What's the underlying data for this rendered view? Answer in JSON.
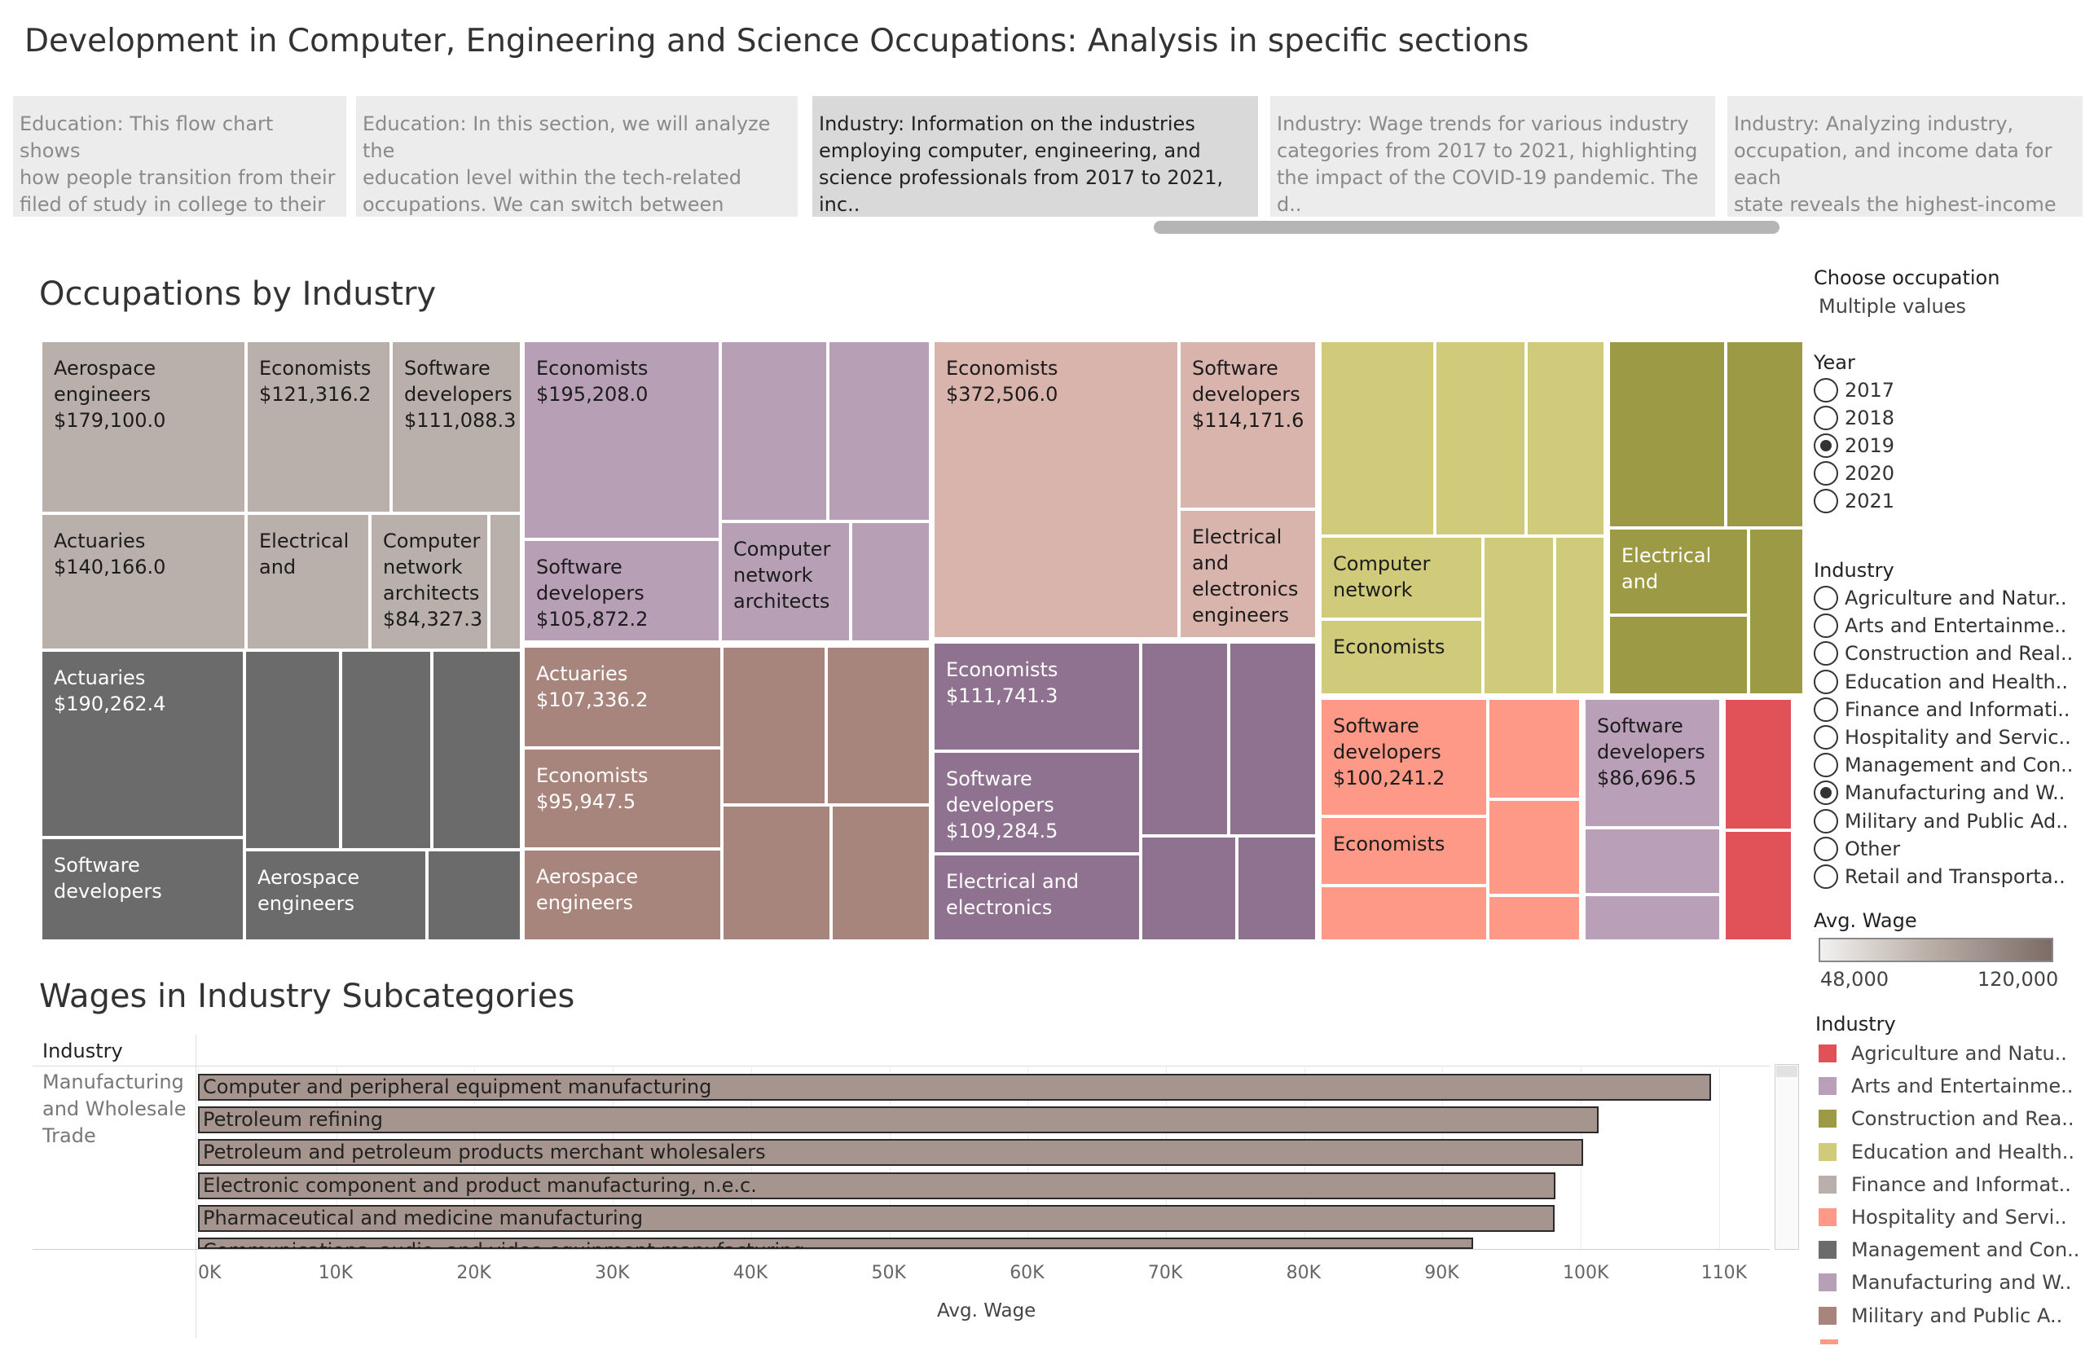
{
  "title": "Development in Computer, Engineering and Science Occupations: Analysis in specific sections",
  "story_points": [
    {
      "text": "Education: This flow chart shows\nhow people transition from their\nfiled of study in college to their e..",
      "active": false
    },
    {
      "text": "Education: In this section, we will analyze the\neducation level within the tech-related\noccupations. We can switch between differe..",
      "active": false
    },
    {
      "text": "Industry: Information on the industries\nemploying computer, engineering, and\nscience professionals from 2017 to 2021, inc..",
      "active": true
    },
    {
      "text": "Industry: Wage trends for various industry\ncategories from 2017 to 2021, highlighting\nthe impact of the COVID-19 pandemic. The d..",
      "active": false
    },
    {
      "text": "Industry: Analyzing industry,\noccupation, and income data for each\nstate reveals the highest-income oc..",
      "active": false
    }
  ],
  "treemap": {
    "title": "Occupations by Industry",
    "cells": [
      {
        "text": "Aerospace\nengineers\n$179,100.0",
        "color": "#bab0ab"
      },
      {
        "text": "Economists\n$121,316.2",
        "color": "#bab0ab"
      },
      {
        "text": "Software\ndevelopers\n$111,088.3",
        "color": "#bab0ab"
      },
      {
        "text": "Actuaries\n$140,166.0",
        "color": "#bab0ab"
      },
      {
        "text": "Electrical\nand",
        "color": "#bab0ab"
      },
      {
        "text": "Computer\nnetwork\narchitects\n$84,327.3",
        "color": "#bab0ab"
      },
      {
        "text": "",
        "color": "#bab0ab"
      },
      {
        "text": "Actuaries\n$190,262.4",
        "color": "#6b6b6b"
      },
      {
        "text": "",
        "color": "#6b6b6b"
      },
      {
        "text": "",
        "color": "#6b6b6b"
      },
      {
        "text": "",
        "color": "#6b6b6b"
      },
      {
        "text": "Software\ndevelopers",
        "color": "#6b6b6b"
      },
      {
        "text": "Aerospace\nengineers",
        "color": "#6b6b6b"
      },
      {
        "text": "",
        "color": "#6b6b6b"
      },
      {
        "text": "Economists\n$195,208.0",
        "color": "#b79fb6"
      },
      {
        "text": "",
        "color": "#b79fb6"
      },
      {
        "text": "",
        "color": "#b79fb6"
      },
      {
        "text": "Software\ndevelopers\n$105,872.2",
        "color": "#b79fb6"
      },
      {
        "text": "Computer\nnetwork\narchitects",
        "color": "#b79fb6"
      },
      {
        "text": "",
        "color": "#b79fb6"
      },
      {
        "text": "Actuaries\n$107,336.2",
        "color": "#a8857c"
      },
      {
        "text": "",
        "color": "#a8857c"
      },
      {
        "text": "",
        "color": "#a8857c"
      },
      {
        "text": "Economists\n$95,947.5",
        "color": "#a8857c"
      },
      {
        "text": "",
        "color": "#a8857c"
      },
      {
        "text": "",
        "color": "#a8857c"
      },
      {
        "text": "Aerospace\nengineers",
        "color": "#a8857c"
      },
      {
        "text": "Economists\n$372,506.0",
        "color": "#d9b4ad"
      },
      {
        "text": "Software\ndevelopers\n$114,171.6",
        "color": "#d9b4ad"
      },
      {
        "text": "Electrical\nand\nelectronics\nengineers",
        "color": "#d9b4ad"
      },
      {
        "text": "Economists\n$111,741.3",
        "color": "#8f7290"
      },
      {
        "text": "",
        "color": "#8f7290"
      },
      {
        "text": "",
        "color": "#8f7290"
      },
      {
        "text": "Software\ndevelopers\n$109,284.5",
        "color": "#8f7290"
      },
      {
        "text": "",
        "color": "#8f7290"
      },
      {
        "text": "",
        "color": "#8f7290"
      },
      {
        "text": "Electrical and\nelectronics",
        "color": "#8f7290"
      },
      {
        "text": "",
        "color": "#cfcb7a"
      },
      {
        "text": "",
        "color": "#cfcb7a"
      },
      {
        "text": "",
        "color": "#cfcb7a"
      },
      {
        "text": "Computer\nnetwork",
        "color": "#cfcb7a"
      },
      {
        "text": "",
        "color": "#cfcb7a"
      },
      {
        "text": "",
        "color": "#cfcb7a"
      },
      {
        "text": "Economists",
        "color": "#cfcb7a"
      },
      {
        "text": "",
        "color": "#9c9a44"
      },
      {
        "text": "",
        "color": "#9c9a44"
      },
      {
        "text": "Electrical\nand",
        "color": "#9c9a44"
      },
      {
        "text": "",
        "color": "#9c9a44"
      },
      {
        "text": "",
        "color": "#9c9a44"
      },
      {
        "text": "",
        "color": "#9c9a44"
      },
      {
        "text": "Software\ndevelopers\n$100,241.2",
        "color": "#fe9988"
      },
      {
        "text": "",
        "color": "#fe9988"
      },
      {
        "text": "Economists",
        "color": "#fe9988"
      },
      {
        "text": "",
        "color": "#fe9988"
      },
      {
        "text": "",
        "color": "#fe9988"
      },
      {
        "text": "",
        "color": "#fe9988"
      },
      {
        "text": "Software\ndevelopers\n$86,696.5",
        "color": "#b99fb8"
      },
      {
        "text": "",
        "color": "#b99fb8"
      },
      {
        "text": "",
        "color": "#b99fb8"
      },
      {
        "text": "",
        "color": "#e15258"
      },
      {
        "text": "",
        "color": "#e15258"
      }
    ]
  },
  "filters": {
    "occupation_label": "Choose occupation",
    "occupation_value": "Multiple values",
    "year_label": "Year",
    "years": [
      {
        "label": "2017",
        "selected": false
      },
      {
        "label": "2018",
        "selected": false
      },
      {
        "label": "2019",
        "selected": true
      },
      {
        "label": "2020",
        "selected": false
      },
      {
        "label": "2021",
        "selected": false
      }
    ],
    "industry_label": "Industry",
    "industries": [
      {
        "label": "Agriculture and Natur..",
        "selected": false
      },
      {
        "label": "Arts and Entertainme..",
        "selected": false
      },
      {
        "label": "Construction and Real..",
        "selected": false
      },
      {
        "label": "Education and Health..",
        "selected": false
      },
      {
        "label": "Finance and Informati..",
        "selected": false
      },
      {
        "label": "Hospitality and Servic..",
        "selected": false
      },
      {
        "label": "Management and Con..",
        "selected": false
      },
      {
        "label": "Manufacturing and W..",
        "selected": true
      },
      {
        "label": "Military and Public Ad..",
        "selected": false
      },
      {
        "label": "Other",
        "selected": false
      },
      {
        "label": "Retail and Transporta..",
        "selected": false
      }
    ]
  },
  "avg_wage_legend": {
    "title": "Avg. Wage",
    "min_label": "48,000",
    "max_label": "120,000"
  },
  "industry_legend": {
    "title": "Industry",
    "items": [
      {
        "label": "Agriculture and Natu..",
        "color": "#e15258"
      },
      {
        "label": "Arts and Entertainme..",
        "color": "#b99fb8"
      },
      {
        "label": "Construction and Rea..",
        "color": "#9c9a44"
      },
      {
        "label": "Education and Health..",
        "color": "#cfcb7a"
      },
      {
        "label": "Finance and Informat..",
        "color": "#bab0ab"
      },
      {
        "label": "Hospitality and Servi..",
        "color": "#fe9988"
      },
      {
        "label": "Management and Con..",
        "color": "#6b6b6b"
      },
      {
        "label": "Manufacturing and W..",
        "color": "#b79fb6"
      },
      {
        "label": "Military and Public A..",
        "color": "#a8857c"
      }
    ]
  },
  "bar_section": {
    "title": "Wages in Industry Subcategories",
    "column_header": "Industry",
    "row_group": "Manufacturing\nand Wholesale\nTrade"
  },
  "chart_data": {
    "type": "bar",
    "orientation": "horizontal",
    "categories": [
      "Computer and peripheral equipment manufacturing",
      "Petroleum refining",
      "Petroleum and petroleum products merchant wholesalers",
      "Electronic component and product manufacturing, n.e.c.",
      "Pharmaceutical and medicine manufacturing",
      "Communications, audio, and video equipment manufacturing"
    ],
    "values": [
      109400,
      101300,
      100200,
      98200,
      98100,
      92200
    ],
    "xlabel": "Avg. Wage",
    "ylabel": "Industry",
    "xlim": [
      0,
      115000
    ],
    "ticks": [
      "0K",
      "10K",
      "20K",
      "30K",
      "40K",
      "50K",
      "60K",
      "70K",
      "80K",
      "90K",
      "100K",
      "110K"
    ]
  }
}
